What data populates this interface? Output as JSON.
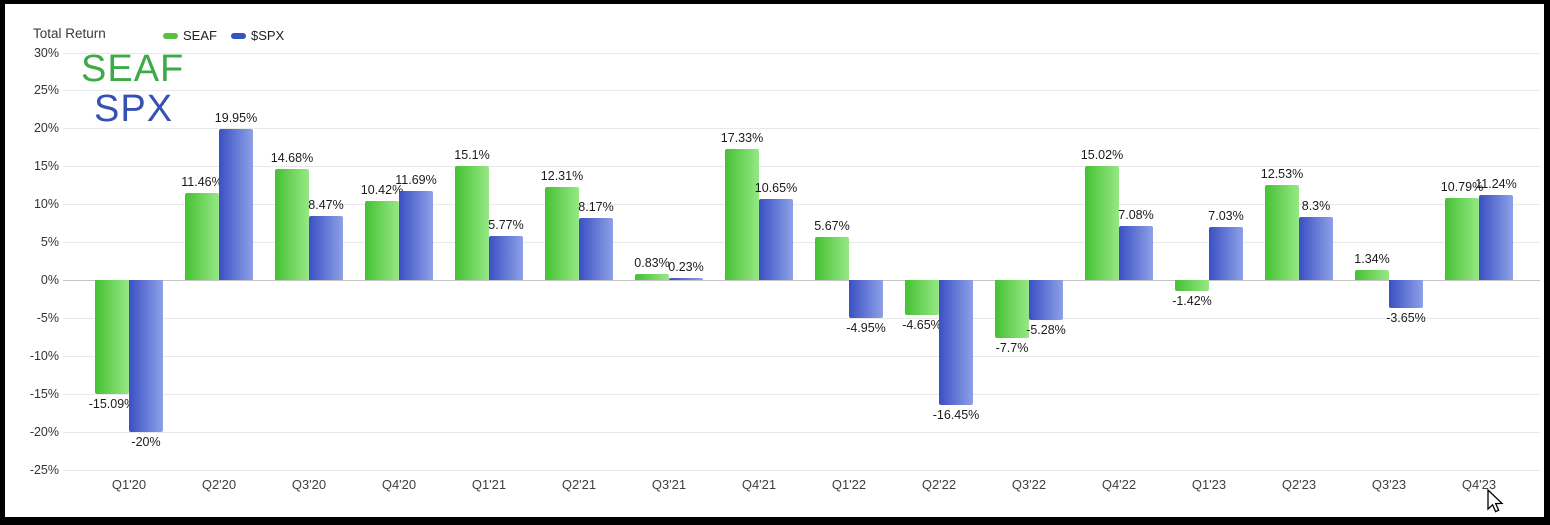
{
  "title": "Total Return",
  "legend": {
    "items": [
      {
        "label": "SEAF",
        "color": "#55c43c"
      },
      {
        "label": "$SPX",
        "color": "#3353c0"
      }
    ]
  },
  "watermark": {
    "line1": "SEAF",
    "line2": "SPX",
    "color1": "#3cab47",
    "color2": "#3751b2"
  },
  "colors": {
    "background": "#ffffff",
    "frame": "#000000",
    "gridline": "#e8e8e8",
    "zero_line": "#c4c4c4",
    "axis_text": "#404040",
    "data_label_text": "#1b1b1b"
  },
  "chart_data": {
    "type": "bar",
    "title": "Total Return",
    "categories": [
      "Q1'20",
      "Q2'20",
      "Q3'20",
      "Q4'20",
      "Q1'21",
      "Q2'21",
      "Q3'21",
      "Q4'21",
      "Q1'22",
      "Q2'22",
      "Q3'22",
      "Q4'22",
      "Q1'23",
      "Q2'23",
      "Q3'23",
      "Q4'23"
    ],
    "series": [
      {
        "name": "SEAF",
        "gradient_left": "#45c133",
        "gradient_right": "#97e885",
        "values": [
          -15.09,
          11.46,
          14.68,
          10.42,
          15.1,
          12.31,
          0.83,
          17.33,
          5.67,
          -4.65,
          -7.7,
          15.02,
          -1.42,
          12.53,
          1.34,
          10.79
        ]
      },
      {
        "name": "$SPX",
        "gradient_left": "#3a50c2",
        "gradient_right": "#8da0e8",
        "values": [
          -20,
          19.95,
          8.47,
          11.69,
          5.77,
          8.17,
          0.23,
          10.65,
          -4.95,
          -16.45,
          -5.28,
          7.08,
          7.03,
          8.3,
          -3.65,
          11.24
        ]
      }
    ],
    "value_suffix": "%",
    "y_ticks": [
      30,
      25,
      20,
      15,
      10,
      5,
      0,
      -5,
      -10,
      -15,
      -20,
      -25
    ],
    "y_tick_suffix": "%",
    "ylim": [
      -25,
      30
    ],
    "grid": true,
    "legend_position": "top",
    "data_labels": true
  }
}
